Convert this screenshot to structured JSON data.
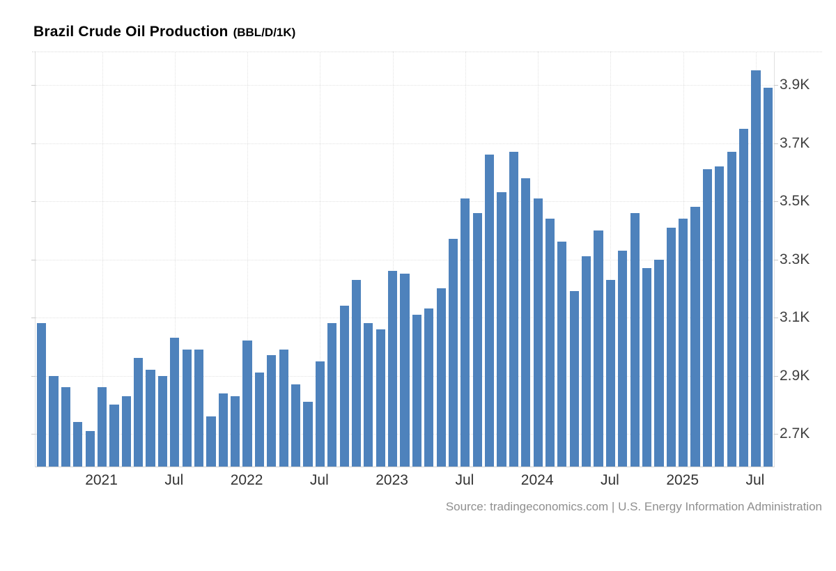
{
  "header": {
    "title": "Brazil Crude Oil Production",
    "unit": "(BBL/D/1K)"
  },
  "footer": {
    "source": "Source: tradingeconomics.com | U.S. Energy Information Administration"
  },
  "colors": {
    "bar": "#4e82bc",
    "grid": "#e2e2e2",
    "axis": "#d0d0d0",
    "y_label": "#3f3f3f",
    "x_label": "#333333",
    "source": "#8f8f8f",
    "background": "#ffffff"
  },
  "chart_data": {
    "type": "bar",
    "title": "Brazil Crude Oil Production",
    "ylabel": "BBL/D/1K",
    "xlabel": "",
    "legend": "none",
    "grid": "dotted",
    "y_axis_side": "right",
    "ylim": [
      2.59,
      4.0
    ],
    "y_ticks": [
      {
        "value": 3.9,
        "label": "3.9K"
      },
      {
        "value": 3.7,
        "label": "3.7K"
      },
      {
        "value": 3.5,
        "label": "3.5K"
      },
      {
        "value": 3.3,
        "label": "3.3K"
      },
      {
        "value": 3.1,
        "label": "3.1K"
      },
      {
        "value": 2.9,
        "label": "2.9K"
      },
      {
        "value": 2.7,
        "label": "2.7K"
      }
    ],
    "x_ticks": [
      {
        "index": 5,
        "label": "2021"
      },
      {
        "index": 11,
        "label": "Jul"
      },
      {
        "index": 17,
        "label": "2022"
      },
      {
        "index": 23,
        "label": "Jul"
      },
      {
        "index": 29,
        "label": "2023"
      },
      {
        "index": 35,
        "label": "Jul"
      },
      {
        "index": 41,
        "label": "2024"
      },
      {
        "index": 47,
        "label": "Jul"
      },
      {
        "index": 53,
        "label": "2025"
      },
      {
        "index": 59,
        "label": "Jul"
      }
    ],
    "categories": [
      "Aug 2020",
      "Sep 2020",
      "Oct 2020",
      "Nov 2020",
      "Dec 2020",
      "Jan 2021",
      "Feb 2021",
      "Mar 2021",
      "Apr 2021",
      "May 2021",
      "Jun 2021",
      "Jul 2021",
      "Aug 2021",
      "Sep 2021",
      "Oct 2021",
      "Nov 2021",
      "Dec 2021",
      "Jan 2022",
      "Feb 2022",
      "Mar 2022",
      "Apr 2022",
      "May 2022",
      "Jun 2022",
      "Jul 2022",
      "Aug 2022",
      "Sep 2022",
      "Oct 2022",
      "Nov 2022",
      "Dec 2022",
      "Jan 2023",
      "Feb 2023",
      "Mar 2023",
      "Apr 2023",
      "May 2023",
      "Jun 2023",
      "Jul 2023",
      "Aug 2023",
      "Sep 2023",
      "Oct 2023",
      "Nov 2023",
      "Dec 2023",
      "Jan 2024",
      "Feb 2024",
      "Mar 2024",
      "Apr 2024",
      "May 2024",
      "Jun 2024",
      "Jul 2024",
      "Aug 2024",
      "Sep 2024",
      "Oct 2024",
      "Nov 2024",
      "Dec 2024",
      "Jan 2025",
      "Feb 2025",
      "Mar 2025",
      "Apr 2025",
      "May 2025",
      "Jun 2025",
      "Jul 2025",
      "Aug 2025"
    ],
    "values": [
      3.08,
      2.9,
      2.86,
      2.74,
      2.71,
      2.86,
      2.8,
      2.83,
      2.96,
      2.92,
      2.9,
      3.03,
      2.99,
      2.99,
      2.76,
      2.84,
      2.83,
      3.02,
      2.91,
      2.97,
      2.99,
      2.87,
      2.81,
      2.95,
      3.08,
      3.14,
      3.23,
      3.08,
      3.06,
      3.26,
      3.25,
      3.11,
      3.13,
      3.2,
      3.37,
      3.51,
      3.46,
      3.66,
      3.53,
      3.67,
      3.58,
      3.51,
      3.44,
      3.36,
      3.19,
      3.31,
      3.4,
      3.23,
      3.33,
      3.46,
      3.27,
      3.3,
      3.41,
      3.44,
      3.48,
      3.61,
      3.62,
      3.67,
      3.75,
      3.95,
      3.89
    ]
  }
}
